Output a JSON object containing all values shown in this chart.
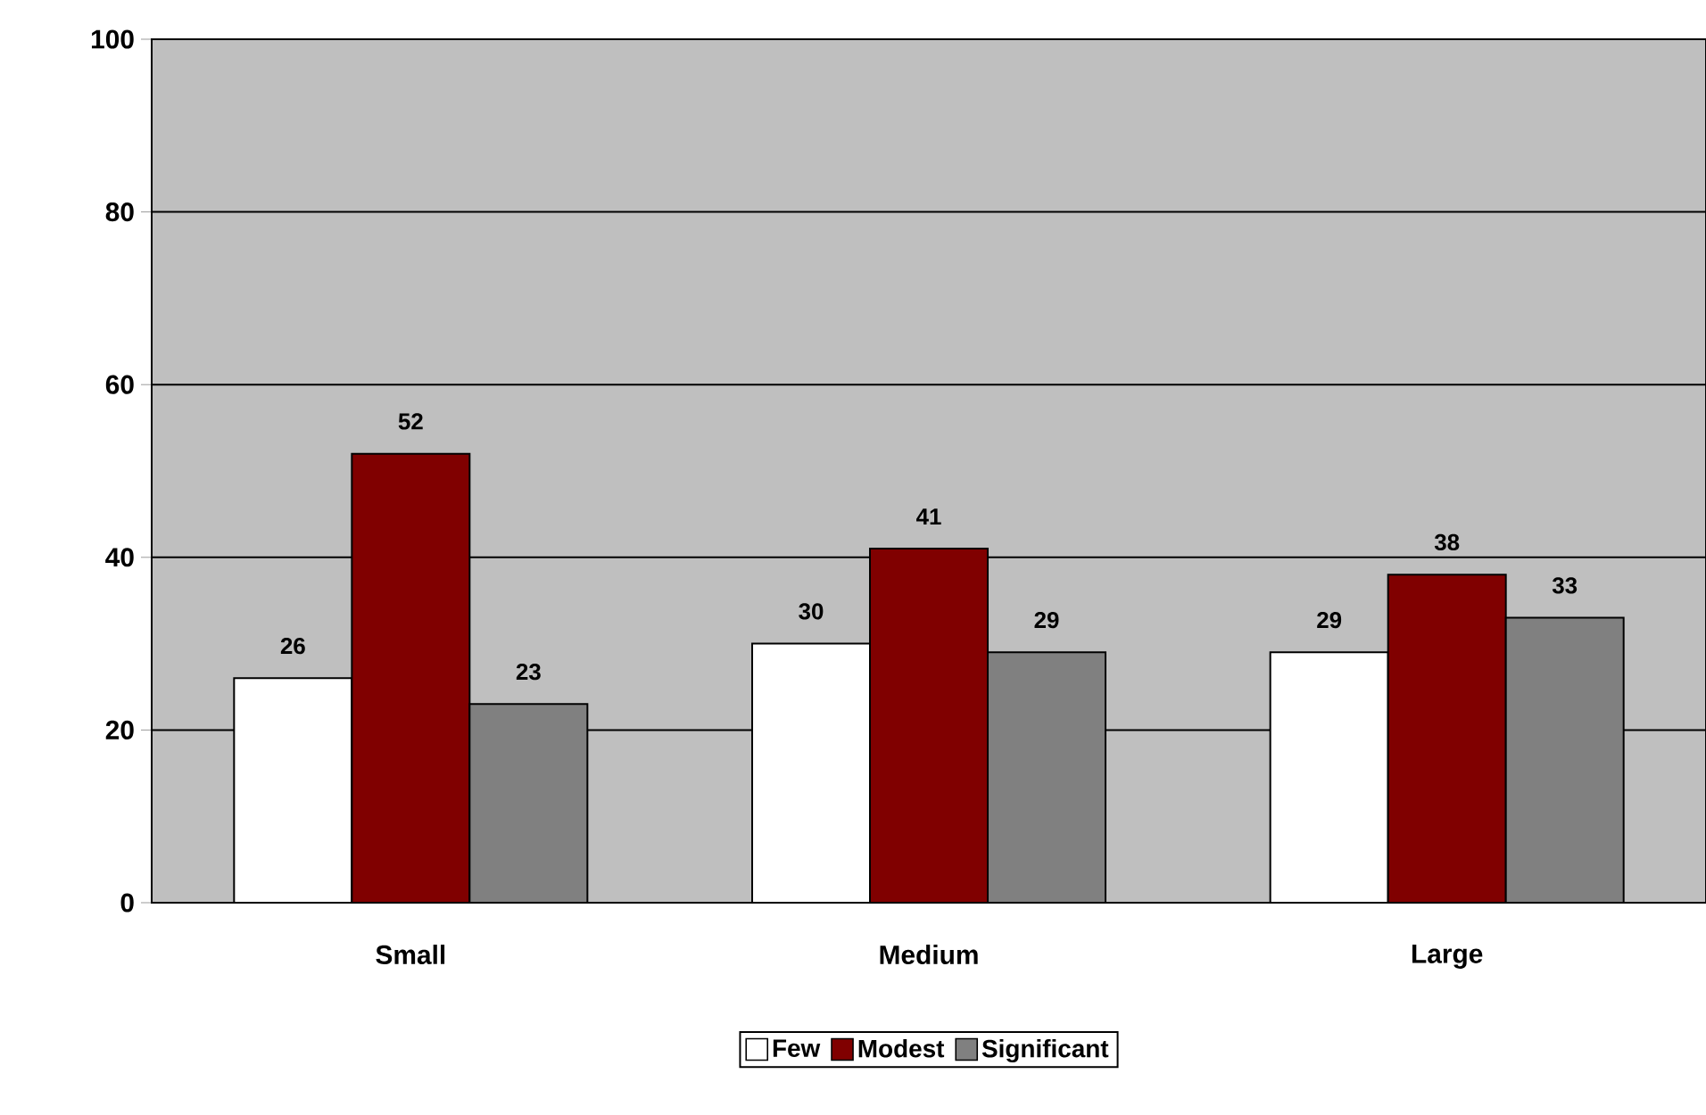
{
  "chart_data": {
    "type": "bar",
    "categories": [
      "Small",
      "Medium",
      "Large"
    ],
    "series": [
      {
        "name": "Few",
        "color": "#ffffff",
        "values": [
          26,
          30,
          29
        ]
      },
      {
        "name": "Modest",
        "color": "#800000",
        "values": [
          52,
          41,
          38
        ]
      },
      {
        "name": "Significant",
        "color": "#808080",
        "values": [
          23,
          29,
          33
        ]
      }
    ],
    "ylim": [
      0,
      100
    ],
    "yticks": [
      0,
      20,
      40,
      60,
      80,
      100
    ],
    "grid": "y",
    "legend": "bottom",
    "data_labels": true
  }
}
